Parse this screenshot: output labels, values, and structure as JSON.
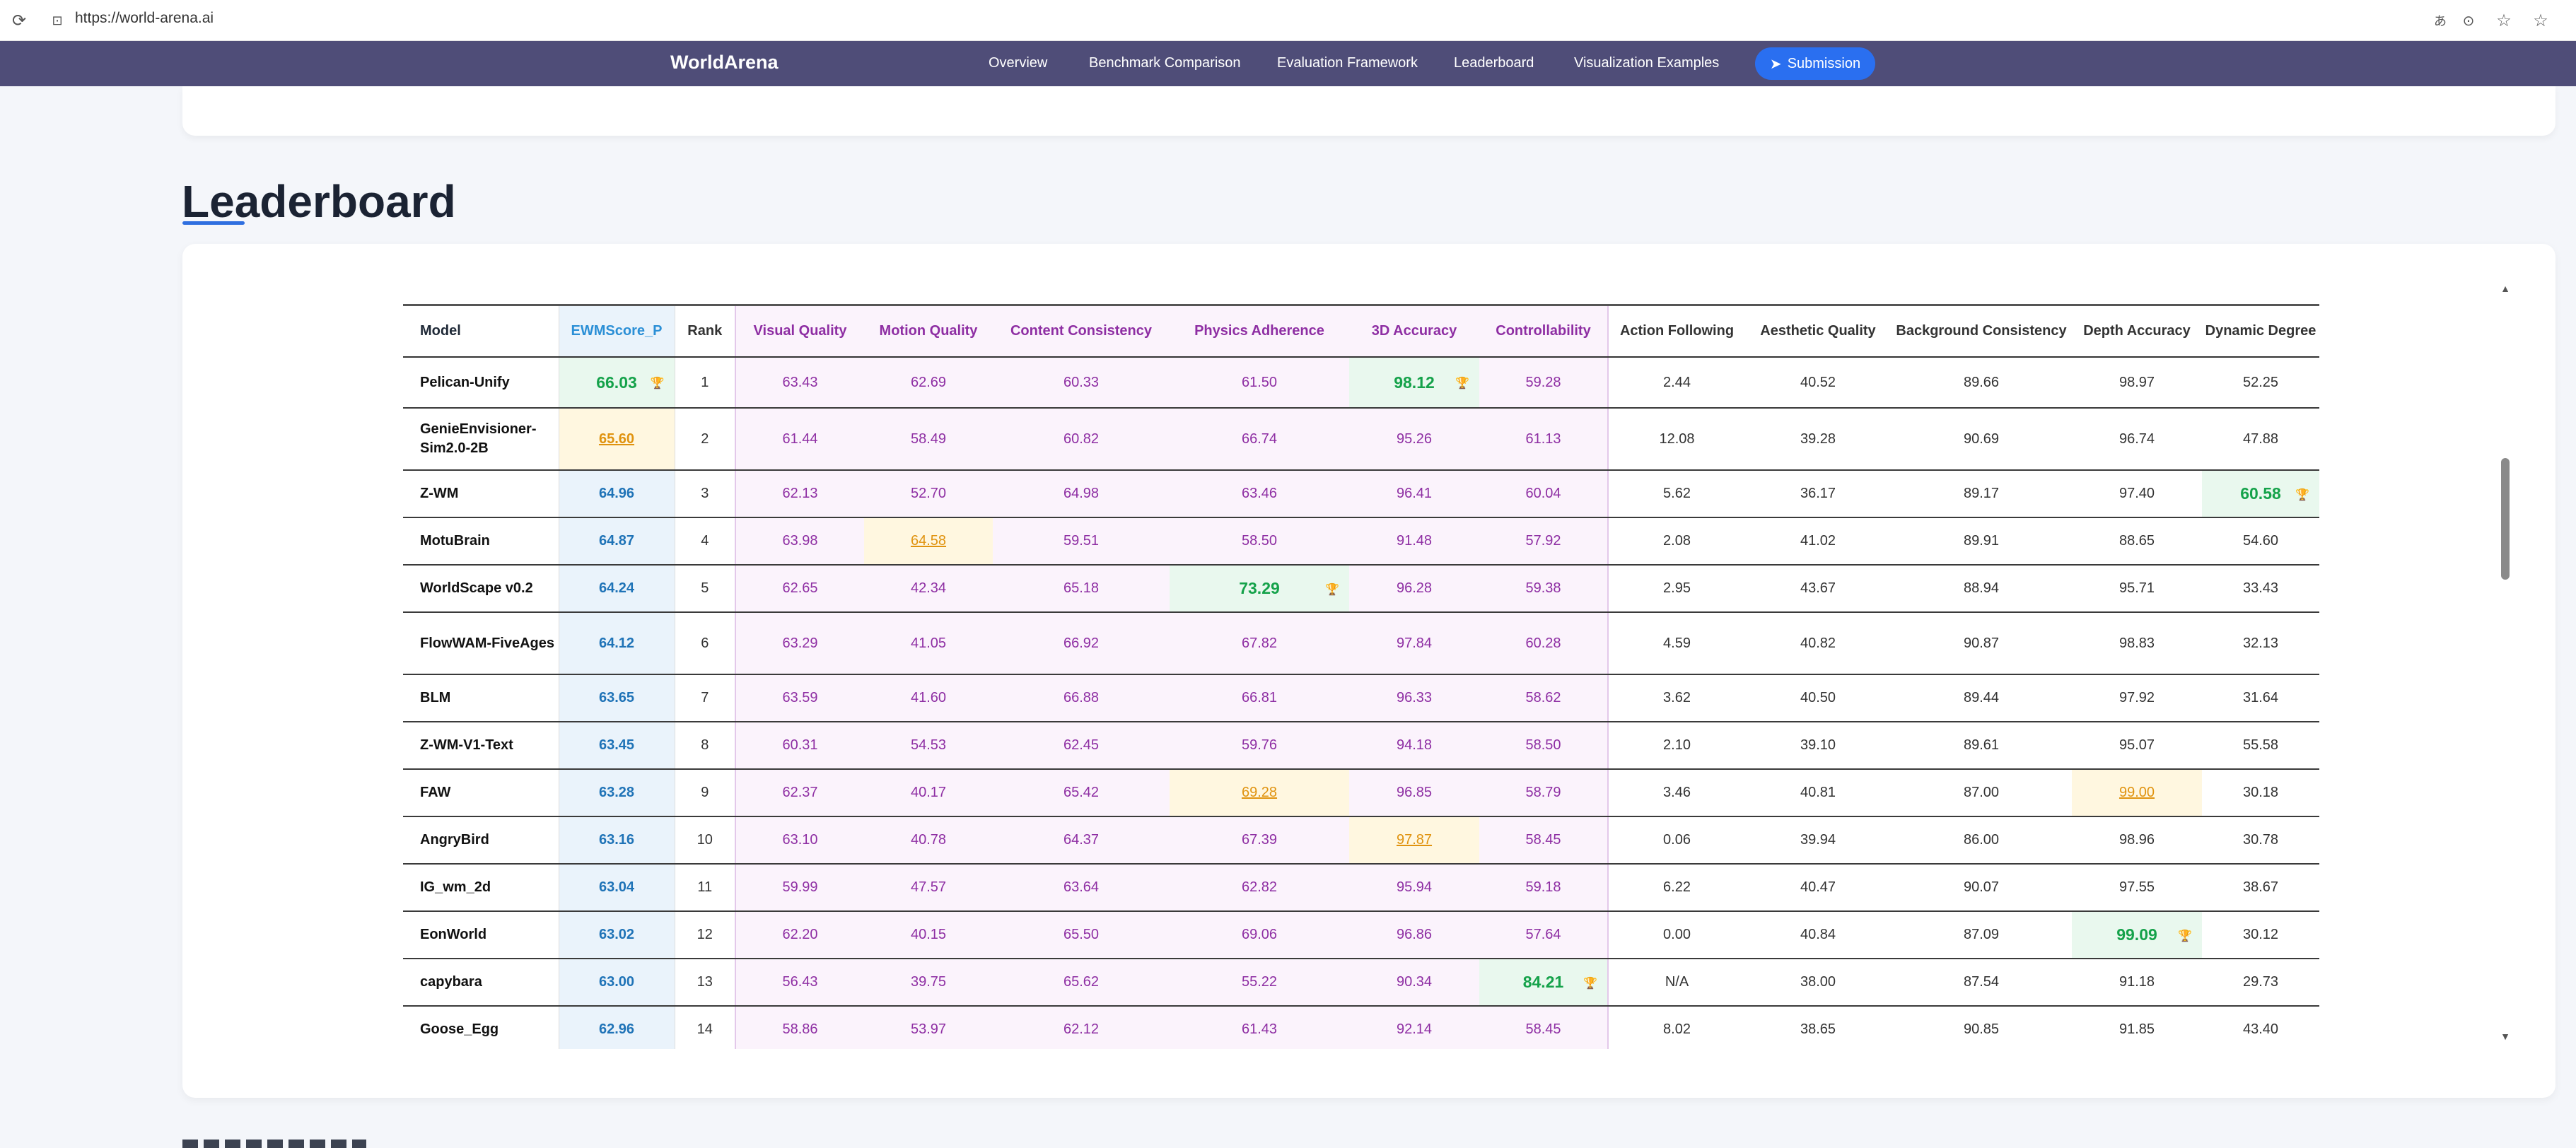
{
  "browser": {
    "url": "https://world-arena.ai"
  },
  "nav": {
    "brand": "WorldArena",
    "links": [
      "Overview",
      "Benchmark Comparison",
      "Evaluation Framework",
      "Leaderboard",
      "Visualization Examples"
    ],
    "submit_label": "Submission"
  },
  "section": {
    "title": "Leaderboard"
  },
  "table": {
    "headers": [
      "Model",
      "EWMScore_P",
      "Rank",
      "Visual Quality",
      "Motion Quality",
      "Content Consistency",
      "Physics Adherence",
      "3D Accuracy",
      "Controllability",
      "Action Following",
      "Aesthetic Quality",
      "Background Consistency",
      "Depth Accuracy",
      "Dynamic Degree"
    ],
    "rows": [
      {
        "model": "Pelican-Unify",
        "cells": [
          "66.03",
          "1",
          "63.43",
          "62.69",
          "60.33",
          "61.50",
          "98.12",
          "59.28",
          "2.44",
          "40.52",
          "89.66",
          "98.97",
          "52.25"
        ],
        "best": [
          0,
          6
        ],
        "second": []
      },
      {
        "model": "GenieEnvisioner-Sim2.0-2B",
        "cells": [
          "65.60",
          "2",
          "61.44",
          "58.49",
          "60.82",
          "66.74",
          "95.26",
          "61.13",
          "12.08",
          "39.28",
          "90.69",
          "96.74",
          "47.88"
        ],
        "best": [],
        "second": [
          0
        ]
      },
      {
        "model": "Z-WM",
        "cells": [
          "64.96",
          "3",
          "62.13",
          "52.70",
          "64.98",
          "63.46",
          "96.41",
          "60.04",
          "5.62",
          "36.17",
          "89.17",
          "97.40",
          "60.58"
        ],
        "best": [
          12
        ],
        "second": []
      },
      {
        "model": "MotuBrain",
        "cells": [
          "64.87",
          "4",
          "63.98",
          "64.58",
          "59.51",
          "58.50",
          "91.48",
          "57.92",
          "2.08",
          "41.02",
          "89.91",
          "88.65",
          "54.60"
        ],
        "best": [],
        "second": [
          3
        ]
      },
      {
        "model": "WorldScape v0.2",
        "cells": [
          "64.24",
          "5",
          "62.65",
          "42.34",
          "65.18",
          "73.29",
          "96.28",
          "59.38",
          "2.95",
          "43.67",
          "88.94",
          "95.71",
          "33.43"
        ],
        "best": [
          5
        ],
        "second": []
      },
      {
        "model": "FlowWAM-FiveAges",
        "cells": [
          "64.12",
          "6",
          "63.29",
          "41.05",
          "66.92",
          "67.82",
          "97.84",
          "60.28",
          "4.59",
          "40.82",
          "90.87",
          "98.83",
          "32.13"
        ],
        "best": [],
        "second": []
      },
      {
        "model": "BLM",
        "cells": [
          "63.65",
          "7",
          "63.59",
          "41.60",
          "66.88",
          "66.81",
          "96.33",
          "58.62",
          "3.62",
          "40.50",
          "89.44",
          "97.92",
          "31.64"
        ],
        "best": [],
        "second": []
      },
      {
        "model": "Z-WM-V1-Text",
        "cells": [
          "63.45",
          "8",
          "60.31",
          "54.53",
          "62.45",
          "59.76",
          "94.18",
          "58.50",
          "2.10",
          "39.10",
          "89.61",
          "95.07",
          "55.58"
        ],
        "best": [],
        "second": []
      },
      {
        "model": "FAW",
        "cells": [
          "63.28",
          "9",
          "62.37",
          "40.17",
          "65.42",
          "69.28",
          "96.85",
          "58.79",
          "3.46",
          "40.81",
          "87.00",
          "99.00",
          "30.18"
        ],
        "best": [],
        "second": [
          5,
          11
        ]
      },
      {
        "model": "AngryBird",
        "cells": [
          "63.16",
          "10",
          "63.10",
          "40.78",
          "64.37",
          "67.39",
          "97.87",
          "58.45",
          "0.06",
          "39.94",
          "86.00",
          "98.96",
          "30.78"
        ],
        "best": [],
        "second": [
          6
        ]
      },
      {
        "model": "IG_wm_2d",
        "cells": [
          "63.04",
          "11",
          "59.99",
          "47.57",
          "63.64",
          "62.82",
          "95.94",
          "59.18",
          "6.22",
          "40.47",
          "90.07",
          "97.55",
          "38.67"
        ],
        "best": [],
        "second": []
      },
      {
        "model": "EonWorld",
        "cells": [
          "63.02",
          "12",
          "62.20",
          "40.15",
          "65.50",
          "69.06",
          "96.86",
          "57.64",
          "0.00",
          "40.84",
          "87.09",
          "99.09",
          "30.12"
        ],
        "best": [
          11
        ],
        "second": []
      },
      {
        "model": "capybara",
        "cells": [
          "63.00",
          "13",
          "56.43",
          "39.75",
          "65.62",
          "55.22",
          "90.34",
          "84.21",
          "N/A",
          "38.00",
          "87.54",
          "91.18",
          "29.73"
        ],
        "best": [
          7
        ],
        "second": []
      },
      {
        "model": "Goose_Egg",
        "cells": [
          "62.96",
          "14",
          "58.86",
          "53.97",
          "62.12",
          "61.43",
          "92.14",
          "58.45",
          "8.02",
          "38.65",
          "90.85",
          "91.85",
          "43.40"
        ],
        "best": [],
        "second": []
      }
    ]
  },
  "colors": {
    "nav_bg": "#4f4d78",
    "submit_bg": "#2a6ff0",
    "ews_text": "#1f73b7",
    "purple_text": "#8e2ea3",
    "best_text": "#15a24a",
    "second_text": "#e0930f"
  },
  "icons": {
    "reload": "reload-icon",
    "lock": "lock-icon",
    "submit": "send-icon",
    "trophy": "trophy-icon"
  }
}
